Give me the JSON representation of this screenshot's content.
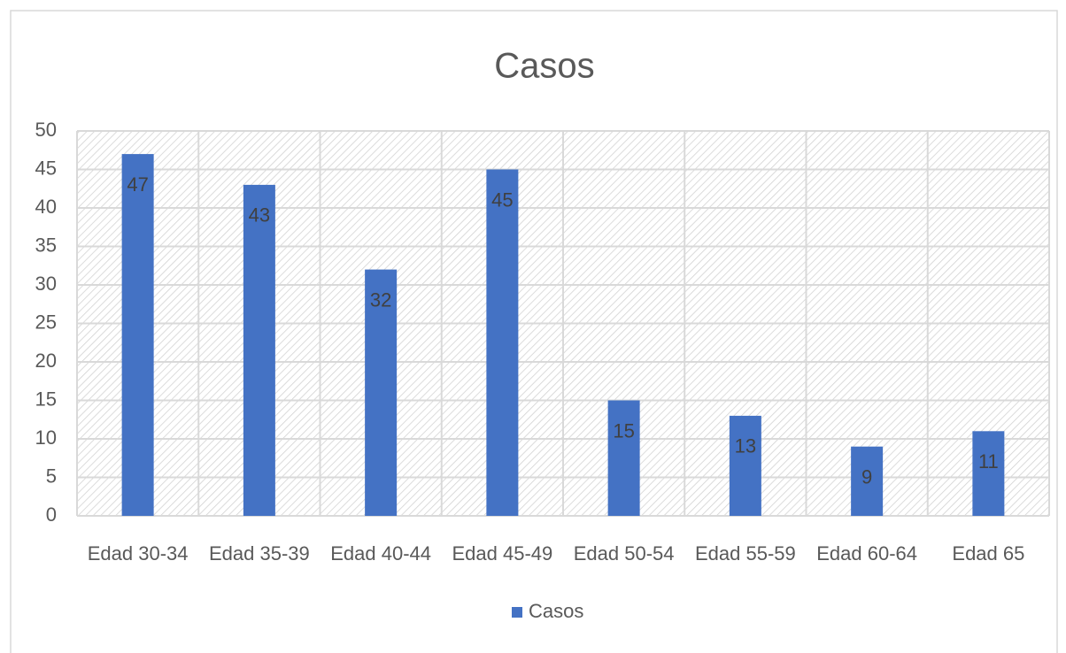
{
  "chart_data": {
    "type": "bar",
    "title": "Casos",
    "categories": [
      "Edad 30-34",
      "Edad 35-39",
      "Edad 40-44",
      "Edad 45-49",
      "Edad 50-54",
      "Edad 55-59",
      "Edad 60-64",
      "Edad 65"
    ],
    "series": [
      {
        "name": "Casos",
        "color": "#4472c4",
        "values": [
          47,
          43,
          32,
          45,
          15,
          13,
          9,
          11
        ]
      }
    ],
    "ylim": [
      0,
      50
    ],
    "yticks": [
      0,
      5,
      10,
      15,
      20,
      25,
      30,
      35,
      40,
      45,
      50
    ],
    "grid": true,
    "legend": "bottom"
  }
}
